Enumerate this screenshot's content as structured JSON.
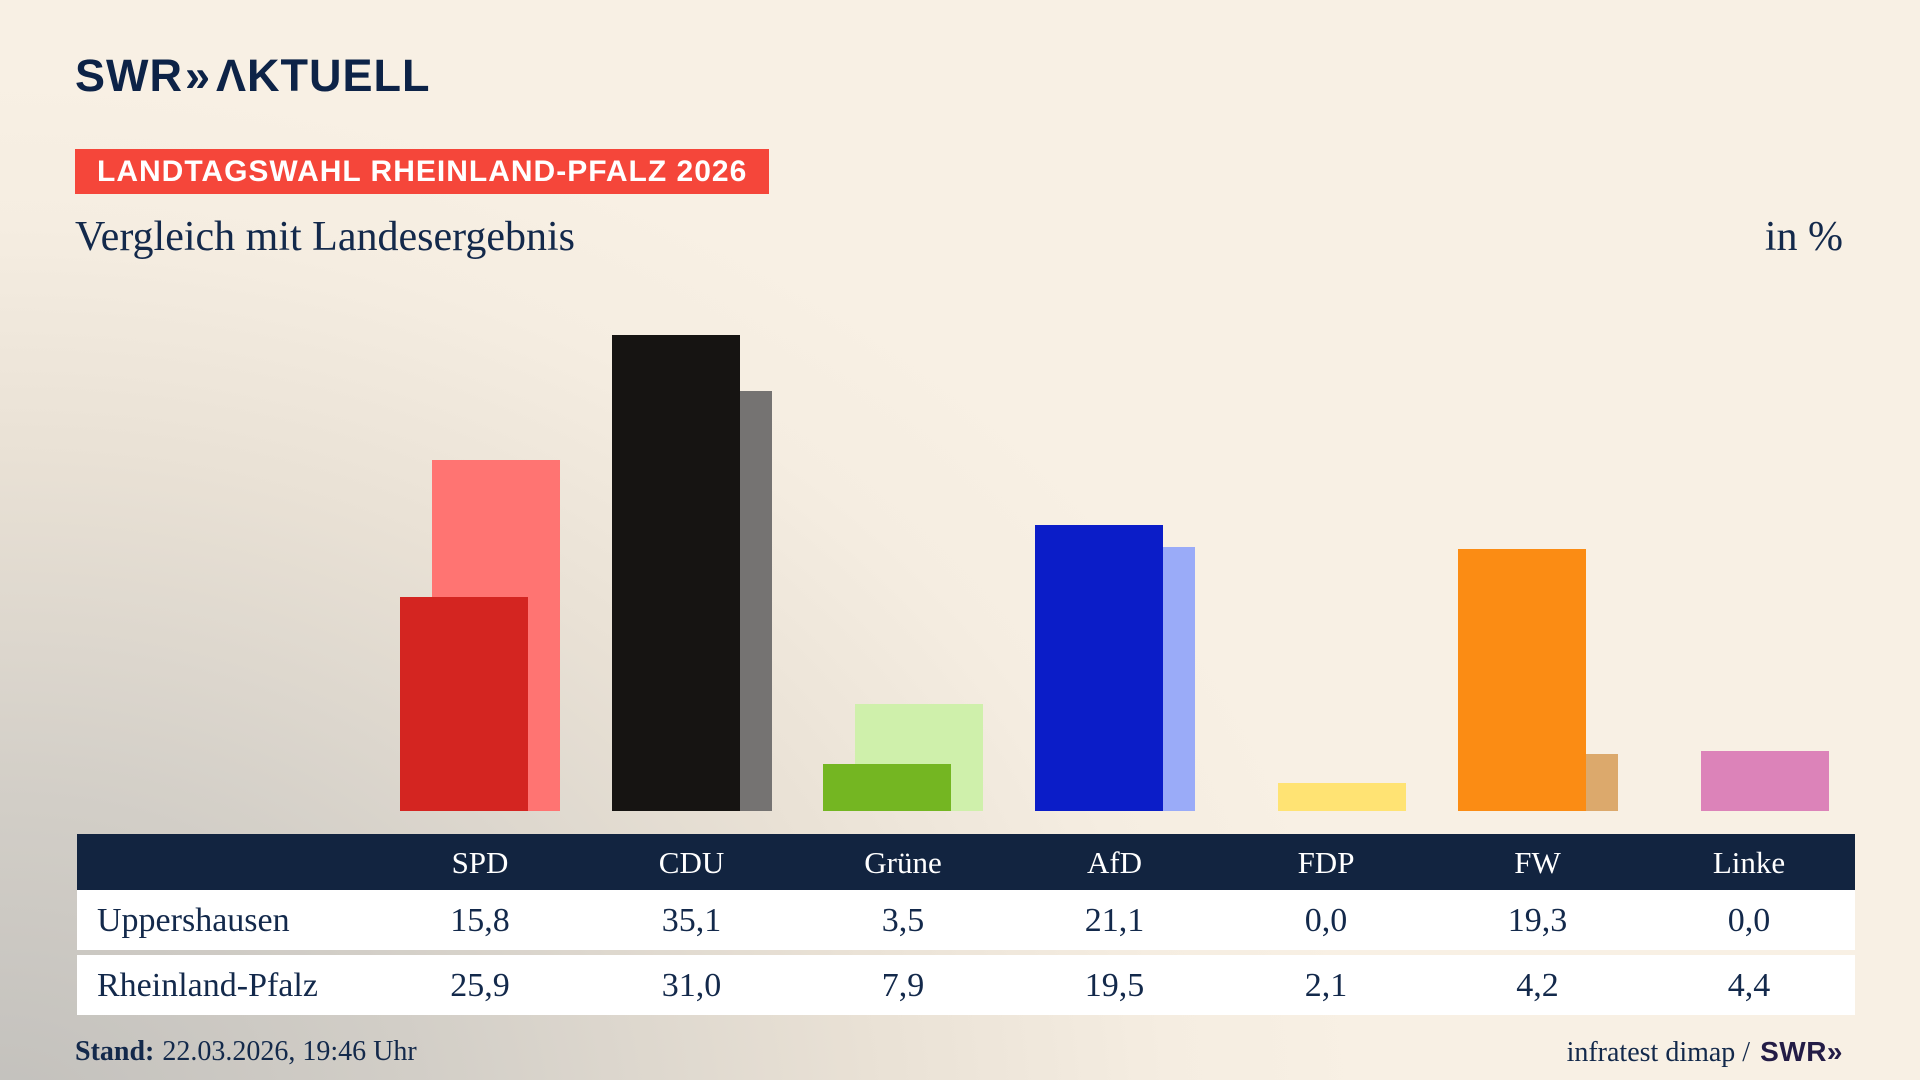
{
  "header": {
    "logo_swr": "SWR",
    "logo_chevrons": "»",
    "logo_aktuell": "ΛKTUELL",
    "badge": "LANDTAGSWAHL RHEINLAND-PFALZ 2026",
    "title": "Vergleich mit Landesergebnis",
    "unit_label": "in %"
  },
  "chart_data": {
    "type": "bar",
    "categories": [
      "SPD",
      "CDU",
      "Grüne",
      "AfD",
      "FDP",
      "FW",
      "Linke"
    ],
    "series": [
      {
        "name": "Uppershausen",
        "values": [
          15.8,
          35.1,
          3.5,
          21.1,
          0.0,
          19.3,
          0.0
        ],
        "colors": [
          "#d42521",
          "#161412",
          "#74b622",
          "#0b1dc8",
          null,
          "#fb8c14",
          null
        ]
      },
      {
        "name": "Rheinland-Pfalz",
        "values": [
          25.9,
          31.0,
          7.9,
          19.5,
          2.1,
          4.2,
          4.4
        ],
        "colors": [
          "#ff7472",
          "#757372",
          "#cff0ab",
          "#9aabf8",
          "#ffe373",
          "#dca96c",
          "#dc83b9"
        ]
      }
    ],
    "unit": "%",
    "value_format": "german-decimal-comma",
    "grid": false,
    "legend_position": "table-below-chart",
    "ylim": [
      0,
      36
    ]
  },
  "footer": {
    "stand_label": "Stand:",
    "stand_value": "22.03.2026, 19:46 Uhr",
    "source_text": "infratest dimap /",
    "source_logo_swr": "SWR",
    "source_logo_chevrons": "»"
  },
  "colors": {
    "background_beige": "#f8f0e4",
    "background_gray_corner": "#c2c0bc",
    "navy_text": "#13294b",
    "logo_navy": "#0d2347",
    "badge_red": "#f5463a",
    "table_header_navy": "#122440",
    "table_row_white": "#ffffff"
  }
}
